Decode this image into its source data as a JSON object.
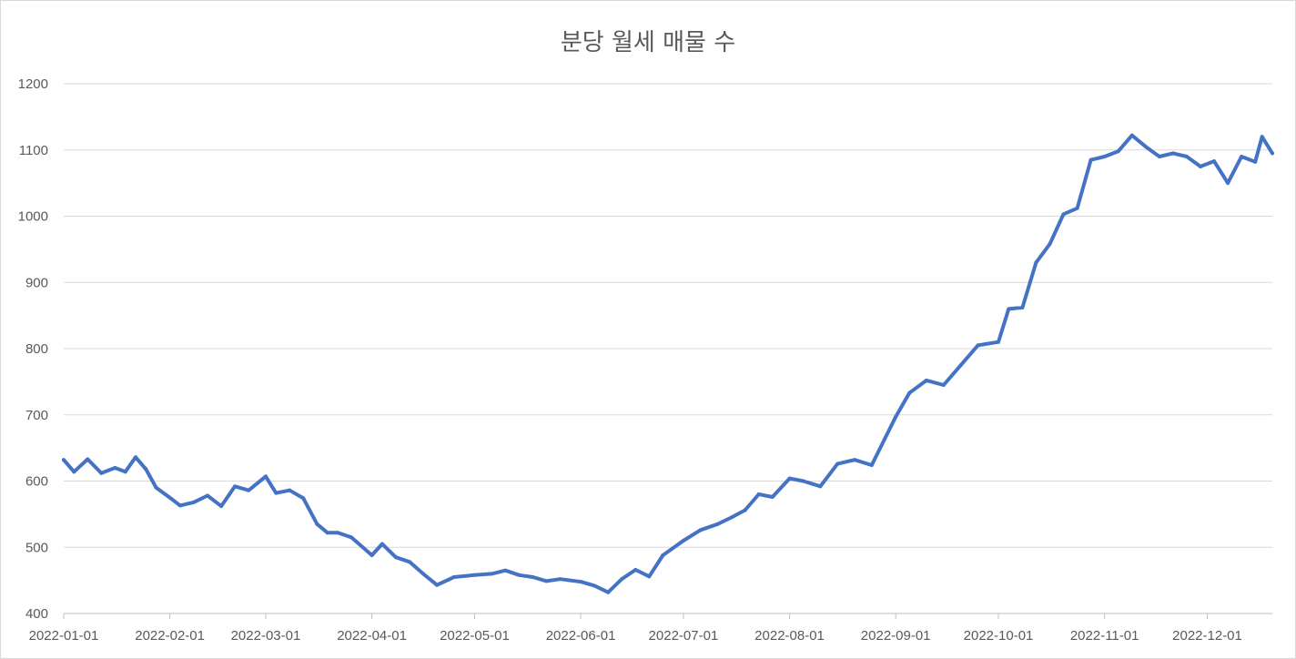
{
  "chart_data": {
    "type": "line",
    "title": "분당 월세 매물 수",
    "xlabel": "",
    "ylabel": "",
    "ylim": [
      400,
      1200
    ],
    "y_ticks": [
      "400",
      "500",
      "600",
      "700",
      "800",
      "900",
      "1000",
      "1100",
      "1200"
    ],
    "x_range": [
      "2022-01-01",
      "2022-12-20"
    ],
    "x_ticks": [
      "2022-01-01",
      "2022-02-01",
      "2022-03-01",
      "2022-04-01",
      "2022-05-01",
      "2022-06-01",
      "2022-07-01",
      "2022-08-01",
      "2022-09-01",
      "2022-10-01",
      "2022-11-01",
      "2022-12-01"
    ],
    "grid": "horizontal",
    "series_color": "#4472c4",
    "series": [
      {
        "x": [
          "2022-01-01",
          "2022-01-04",
          "2022-01-08",
          "2022-01-12",
          "2022-01-16",
          "2022-01-19",
          "2022-01-22",
          "2022-01-25",
          "2022-01-28",
          "2022-02-01",
          "2022-02-04",
          "2022-02-08",
          "2022-02-12",
          "2022-02-16",
          "2022-02-20",
          "2022-02-24",
          "2022-03-01",
          "2022-03-04",
          "2022-03-08",
          "2022-03-12",
          "2022-03-16",
          "2022-03-19",
          "2022-03-22",
          "2022-03-26",
          "2022-04-01",
          "2022-04-04",
          "2022-04-08",
          "2022-04-12",
          "2022-04-16",
          "2022-04-20",
          "2022-04-25",
          "2022-05-01",
          "2022-05-06",
          "2022-05-10",
          "2022-05-14",
          "2022-05-18",
          "2022-05-22",
          "2022-05-26",
          "2022-06-01",
          "2022-06-05",
          "2022-06-09",
          "2022-06-13",
          "2022-06-17",
          "2022-06-21",
          "2022-06-25",
          "2022-07-01",
          "2022-07-06",
          "2022-07-11",
          "2022-07-15",
          "2022-07-19",
          "2022-07-23",
          "2022-07-27",
          "2022-08-01",
          "2022-08-05",
          "2022-08-10",
          "2022-08-15",
          "2022-08-20",
          "2022-08-25",
          "2022-09-01",
          "2022-09-05",
          "2022-09-10",
          "2022-09-15",
          "2022-09-20",
          "2022-09-25",
          "2022-10-01",
          "2022-10-04",
          "2022-10-08",
          "2022-10-12",
          "2022-10-16",
          "2022-10-20",
          "2022-10-24",
          "2022-10-28",
          "2022-11-01",
          "2022-11-05",
          "2022-11-09",
          "2022-11-13",
          "2022-11-17",
          "2022-11-21",
          "2022-11-25",
          "2022-11-29",
          "2022-12-03",
          "2022-12-07",
          "2022-12-11",
          "2022-12-15",
          "2022-12-17",
          "2022-12-20"
        ],
        "values": [
          632,
          614,
          633,
          612,
          620,
          614,
          636,
          618,
          590,
          575,
          563,
          568,
          578,
          562,
          592,
          586,
          607,
          582,
          586,
          574,
          535,
          522,
          522,
          515,
          488,
          505,
          485,
          478,
          460,
          443,
          455,
          458,
          460,
          465,
          458,
          455,
          449,
          452,
          448,
          442,
          432,
          452,
          466,
          456,
          488,
          510,
          526,
          535,
          545,
          556,
          580,
          576,
          604,
          600,
          592,
          626,
          632,
          624,
          697,
          733,
          752,
          745,
          775,
          805,
          810,
          860,
          862,
          930,
          958,
          1003,
          1012,
          1085,
          1090,
          1098,
          1122,
          1105,
          1090,
          1095,
          1090,
          1075,
          1083,
          1050,
          1090,
          1082,
          1120,
          1095
        ]
      }
    ]
  }
}
